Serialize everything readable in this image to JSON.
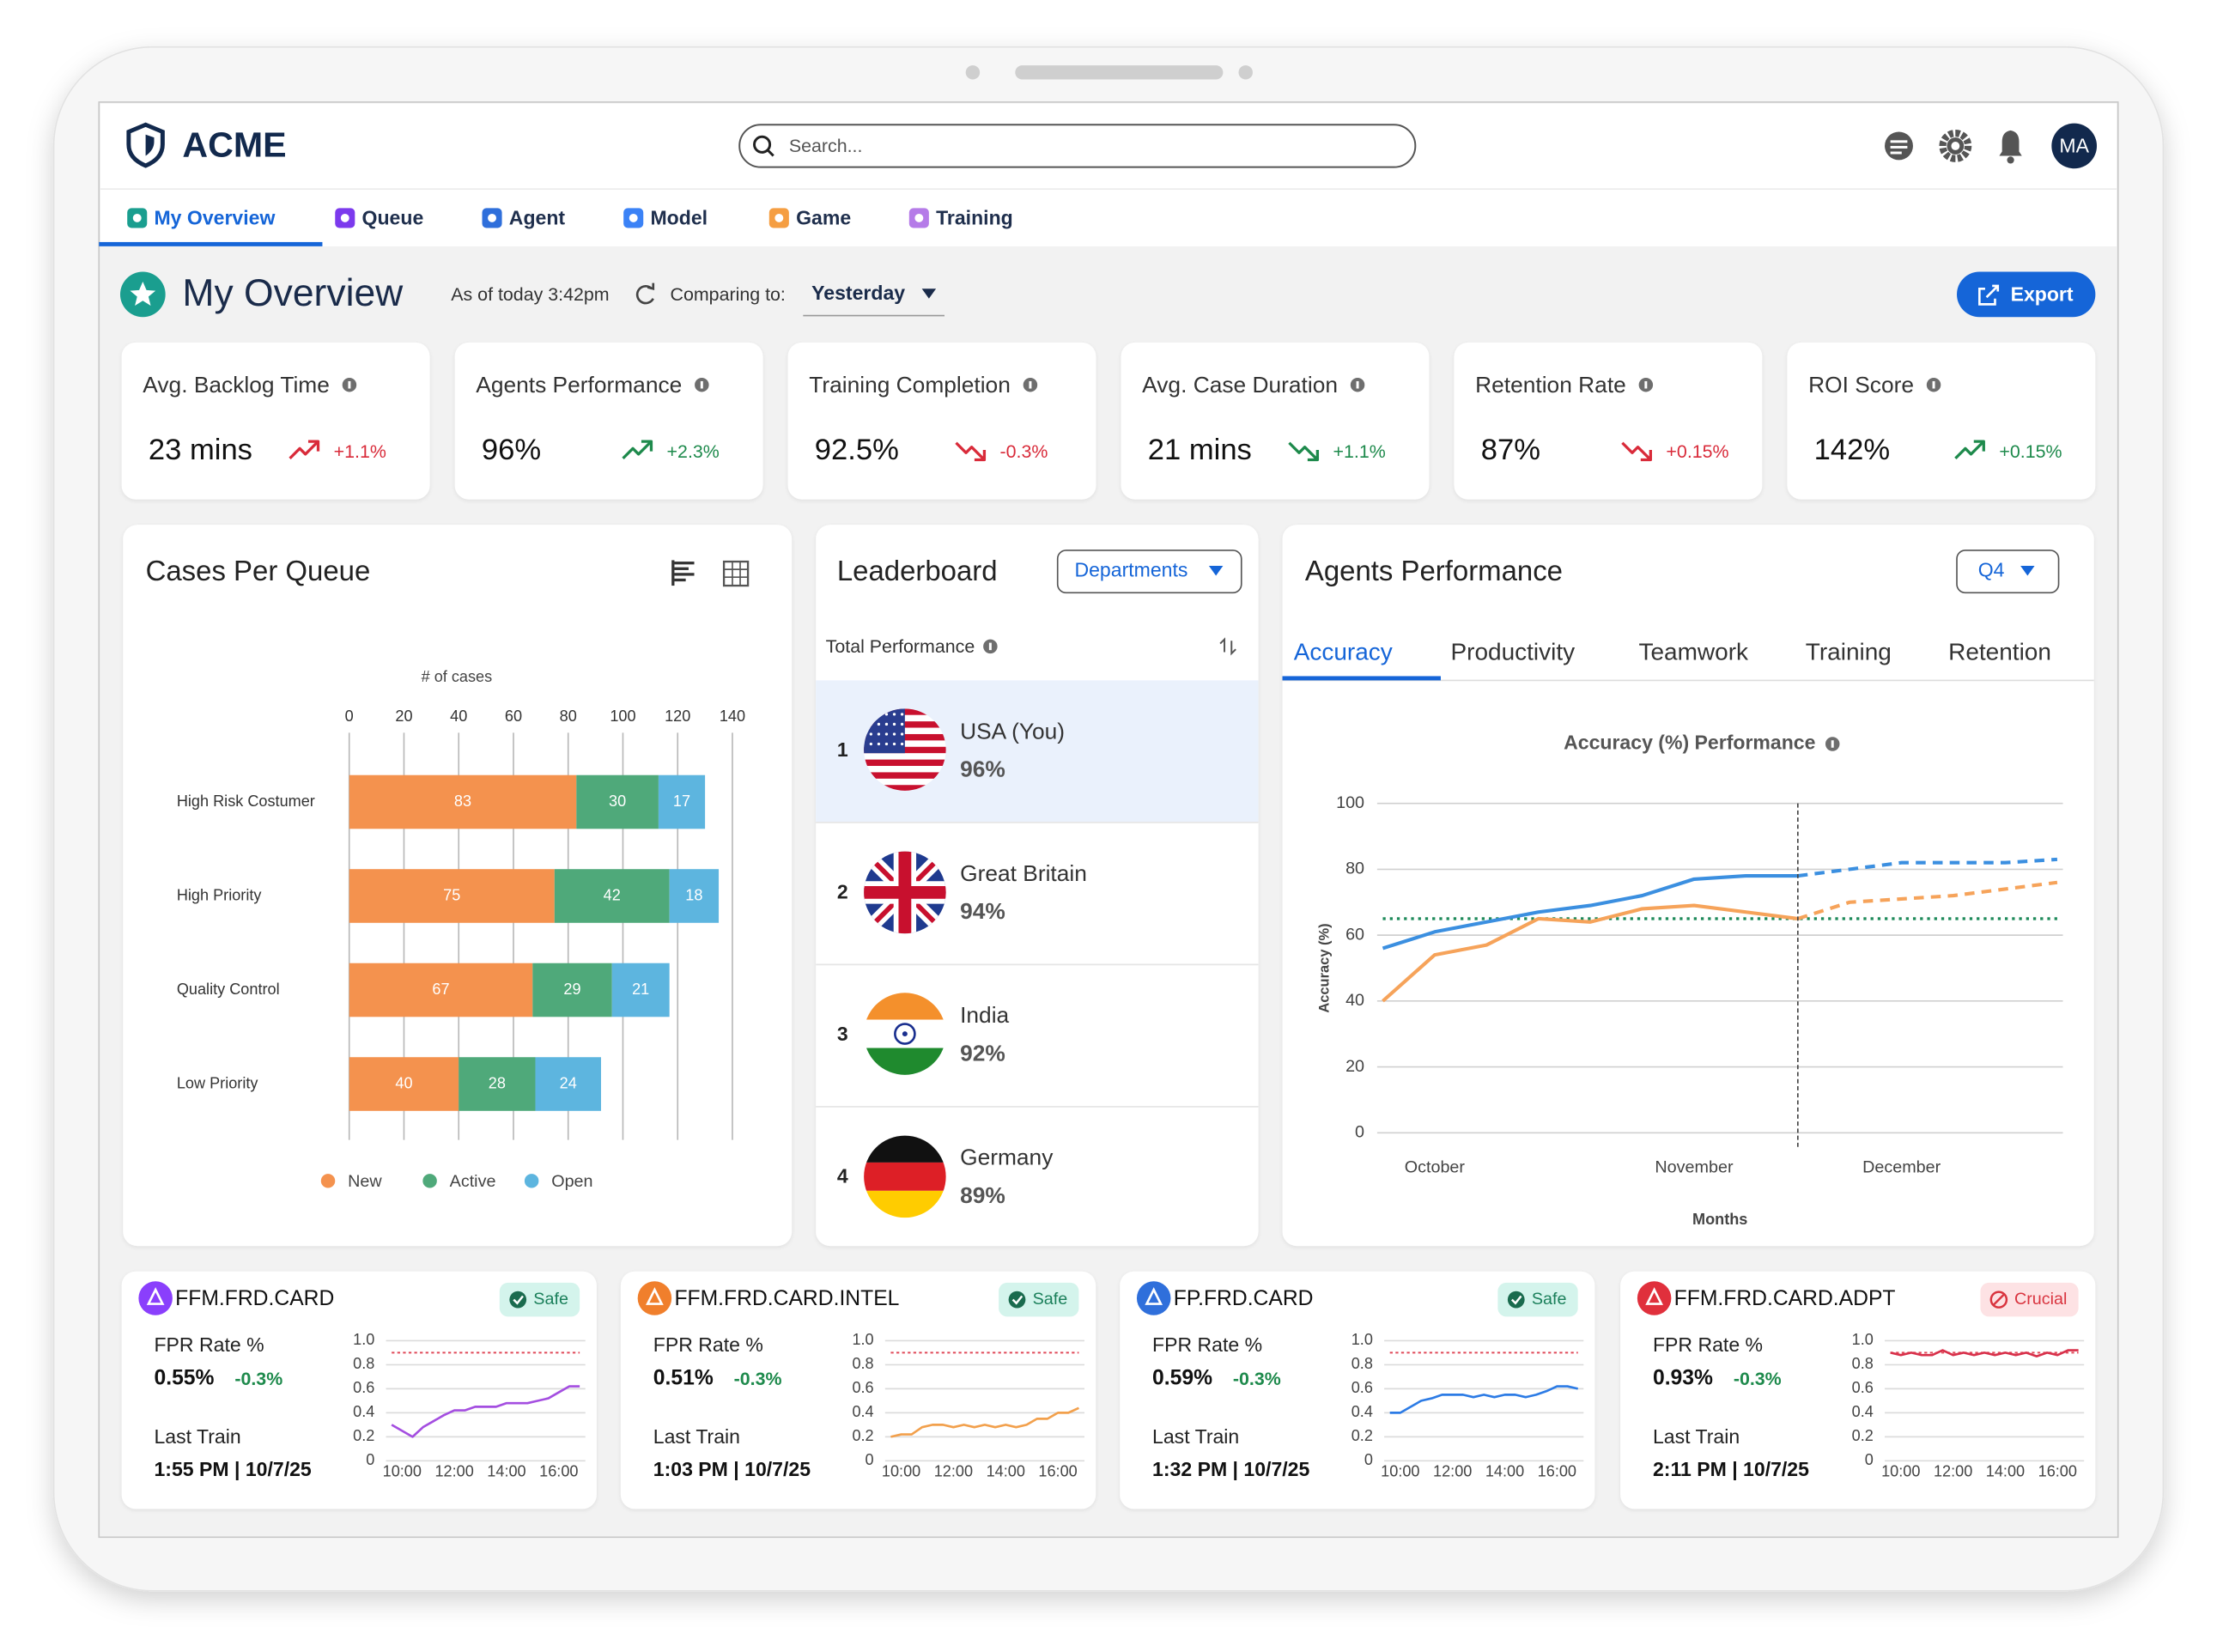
{
  "header": {
    "logo": "ACME",
    "search_placeholder": "Search...",
    "avatar": "MA"
  },
  "tabs": [
    {
      "label": "My Overview",
      "color": "#1a9e8f",
      "active": true
    },
    {
      "label": "Queue",
      "color": "#7c3aed"
    },
    {
      "label": "Agent",
      "color": "#2f6fdb"
    },
    {
      "label": "Model",
      "color": "#3b82f6"
    },
    {
      "label": "Game",
      "color": "#f59e42"
    },
    {
      "label": "Training",
      "color": "#b57be8"
    }
  ],
  "overview": {
    "title": "My Overview",
    "as_of": "As of today 3:42pm",
    "comparing_label": "Comparing to:",
    "comparing_value": "Yesterday",
    "export": "Export"
  },
  "kpis": [
    {
      "label": "Avg. Backlog Time",
      "value": "23 mins",
      "change": "+1.1%",
      "direction": "up",
      "color": "#d92b3a"
    },
    {
      "label": "Agents Performance",
      "value": "96%",
      "change": "+2.3%",
      "direction": "up",
      "color": "#1e8a4c"
    },
    {
      "label": "Training Completion",
      "value": "92.5%",
      "change": "-0.3%",
      "direction": "down",
      "color": "#d92b3a"
    },
    {
      "label": "Avg. Case Duration",
      "value": "21 mins",
      "change": "+1.1%",
      "direction": "down",
      "color": "#1e8a4c"
    },
    {
      "label": "Retention Rate",
      "value": "87%",
      "change": "+0.15%",
      "direction": "down",
      "color": "#d92b3a"
    },
    {
      "label": "ROI Score",
      "value": "142%",
      "change": "+0.15%",
      "direction": "up",
      "color": "#1e8a4c"
    }
  ],
  "leaderboard": {
    "title": "Leaderboard",
    "filter": "Departments",
    "column": "Total Performance",
    "rows": [
      {
        "rank": 1,
        "name": "USA (You)",
        "value": "96%",
        "highlight": true
      },
      {
        "rank": 2,
        "name": "Great Britain",
        "value": "94%"
      },
      {
        "rank": 3,
        "name": "India",
        "value": "92%"
      },
      {
        "rank": 4,
        "name": "Germany",
        "value": "89%"
      }
    ]
  },
  "agents_card": {
    "title": "Agents Performance",
    "filter": "Q4",
    "tabs": [
      {
        "label": "Accuracy",
        "active": true
      },
      {
        "label": "Productivity"
      },
      {
        "label": "Teamwork"
      },
      {
        "label": "Training"
      },
      {
        "label": "Retention"
      }
    ]
  },
  "models": [
    {
      "name": "FFM.FRD.CARD",
      "status": "Safe",
      "metric": "FPR Rate %",
      "value": "0.55%",
      "change": "-0.3%",
      "last_train_label": "Last Train",
      "last_train": "1:55 PM | 10/7/25",
      "color": "#8a3ffc"
    },
    {
      "name": "FFM.FRD.CARD.INTEL",
      "status": "Safe",
      "metric": "FPR Rate %",
      "value": "0.51%",
      "change": "-0.3%",
      "last_train_label": "Last Train",
      "last_train": "1:03 PM | 10/7/25",
      "color": "#f07f2c"
    },
    {
      "name": "FP.FRD.CARD",
      "status": "Safe",
      "metric": "FPR Rate %",
      "value": "0.59%",
      "change": "-0.3%",
      "last_train_label": "Last Train",
      "last_train": "1:32 PM | 10/7/25",
      "color": "#2f6fdb"
    },
    {
      "name": "FFM.FRD.CARD.ADPT",
      "status": "Crucial",
      "alert": true,
      "metric": "FPR Rate %",
      "value": "0.93%",
      "change": "-0.3%",
      "last_train_label": "Last Train",
      "last_train": "2:11 PM | 10/7/25",
      "color": "#e0303c"
    }
  ],
  "chart_data": [
    {
      "type": "bar",
      "orientation": "horizontal",
      "stacked": true,
      "title": "Cases Per Queue",
      "x_label": "# of cases",
      "categories": [
        "High Risk Costumer",
        "High Priority",
        "Quality Control",
        "Low Priority"
      ],
      "series": [
        {
          "name": "New",
          "color": "#f4924e",
          "values": [
            83,
            75,
            67,
            40
          ]
        },
        {
          "name": "Active",
          "color": "#4fa97a",
          "values": [
            30,
            42,
            29,
            28
          ]
        },
        {
          "name": "Open",
          "color": "#5db5df",
          "values": [
            17,
            18,
            21,
            24
          ]
        }
      ],
      "xlim": [
        0,
        140
      ],
      "xticks": [
        0,
        20,
        40,
        60,
        80,
        100,
        120,
        140
      ],
      "grid": true,
      "legend": "bottom"
    },
    {
      "type": "line",
      "title": "Accuracy (%) Performance",
      "x_label": "Months",
      "y_label": "Accuracy (%)",
      "categories": [
        null,
        "October",
        null,
        null,
        null,
        null,
        "November",
        null,
        null,
        null,
        "December",
        null,
        null,
        null
      ],
      "series": [
        {
          "color": "#1e8a5a",
          "dash": "dotted",
          "values": [
            65,
            65,
            65,
            65,
            65,
            65,
            65,
            65,
            65,
            65,
            65,
            65,
            65,
            65
          ]
        },
        {
          "color": "#f6a35a",
          "dash": "solid",
          "values": [
            40,
            54,
            57,
            65,
            64,
            68,
            69,
            67,
            65,
            null,
            null,
            null,
            null,
            null
          ]
        },
        {
          "color": "#f6a35a",
          "dash": "dashed",
          "values": [
            null,
            null,
            null,
            null,
            null,
            null,
            null,
            null,
            65,
            70,
            71,
            72,
            74,
            76
          ]
        },
        {
          "color": "#3b8fe0",
          "dash": "solid",
          "values": [
            56,
            61,
            64,
            67,
            69,
            72,
            77,
            78,
            78,
            null,
            null,
            null,
            null,
            null
          ]
        },
        {
          "color": "#3b8fe0",
          "dash": "dashed",
          "values": [
            null,
            null,
            null,
            null,
            null,
            null,
            null,
            null,
            78,
            80,
            82,
            82,
            82,
            83
          ]
        }
      ],
      "ylim": [
        0,
        100
      ],
      "yticks": [
        0,
        20,
        40,
        60,
        80,
        100
      ],
      "grid": true
    },
    {
      "type": "line",
      "categories": [
        null,
        "10:00",
        null,
        null,
        null,
        null,
        "12:00",
        null,
        null,
        null,
        null,
        "14:00",
        null,
        null,
        null,
        null,
        "16:00",
        null,
        null
      ],
      "series": [
        {
          "color": "#a44ee0",
          "values": [
            0.3,
            0.25,
            0.2,
            0.28,
            0.33,
            0.38,
            0.42,
            0.42,
            0.45,
            0.45,
            0.45,
            0.48,
            0.48,
            0.48,
            0.5,
            0.52,
            0.57,
            0.62,
            0.62
          ]
        }
      ],
      "ylim": [
        0,
        1
      ],
      "yticks": [
        0,
        0.2,
        0.4,
        0.6,
        0.8,
        {
          "value": 1,
          "label": "1.0"
        }
      ],
      "grid": true,
      "threshold": 0.9,
      "threshold_color": "#e04a5a"
    },
    {
      "type": "line",
      "categories": [
        null,
        "10:00",
        null,
        null,
        null,
        null,
        "12:00",
        null,
        null,
        null,
        null,
        "14:00",
        null,
        null,
        null,
        null,
        "16:00",
        null,
        null
      ],
      "series": [
        {
          "color": "#f2a04c",
          "values": [
            0.2,
            0.22,
            0.22,
            0.28,
            0.3,
            0.3,
            0.28,
            0.3,
            0.28,
            0.3,
            0.28,
            0.3,
            0.28,
            0.3,
            0.35,
            0.35,
            0.4,
            0.4,
            0.44
          ]
        }
      ],
      "ylim": [
        0,
        1
      ],
      "yticks": [
        0,
        0.2,
        0.4,
        0.6,
        0.8,
        {
          "value": 1,
          "label": "1.0"
        }
      ],
      "grid": true,
      "threshold": 0.9,
      "threshold_color": "#e04a5a"
    },
    {
      "type": "line",
      "categories": [
        null,
        "10:00",
        null,
        null,
        null,
        null,
        "12:00",
        null,
        null,
        null,
        null,
        "14:00",
        null,
        null,
        null,
        null,
        "16:00",
        null,
        null
      ],
      "series": [
        {
          "color": "#2c7be5",
          "values": [
            0.4,
            0.4,
            0.45,
            0.5,
            0.52,
            0.55,
            0.55,
            0.55,
            0.53,
            0.55,
            0.53,
            0.55,
            0.55,
            0.53,
            0.55,
            0.58,
            0.62,
            0.62,
            0.6
          ]
        }
      ],
      "ylim": [
        0,
        1
      ],
      "yticks": [
        0,
        0.2,
        0.4,
        0.6,
        0.8,
        {
          "value": 1,
          "label": "1.0"
        }
      ],
      "grid": true,
      "threshold": 0.9,
      "threshold_color": "#e04a5a"
    },
    {
      "type": "line",
      "categories": [
        null,
        "10:00",
        null,
        null,
        null,
        null,
        "12:00",
        null,
        null,
        null,
        null,
        "14:00",
        null,
        null,
        null,
        null,
        "16:00",
        null,
        null
      ],
      "series": [
        {
          "color": "#d8304a",
          "values": [
            0.9,
            0.88,
            0.9,
            0.88,
            0.88,
            0.92,
            0.88,
            0.9,
            0.88,
            0.9,
            0.88,
            0.9,
            0.88,
            0.9,
            0.87,
            0.9,
            0.88,
            0.92,
            0.92
          ]
        }
      ],
      "ylim": [
        0,
        1
      ],
      "yticks": [
        0,
        0.2,
        0.4,
        0.6,
        0.8,
        {
          "value": 1,
          "label": "1.0"
        }
      ],
      "grid": true,
      "threshold": 0.9,
      "threshold_color": "#e04a5a"
    }
  ]
}
